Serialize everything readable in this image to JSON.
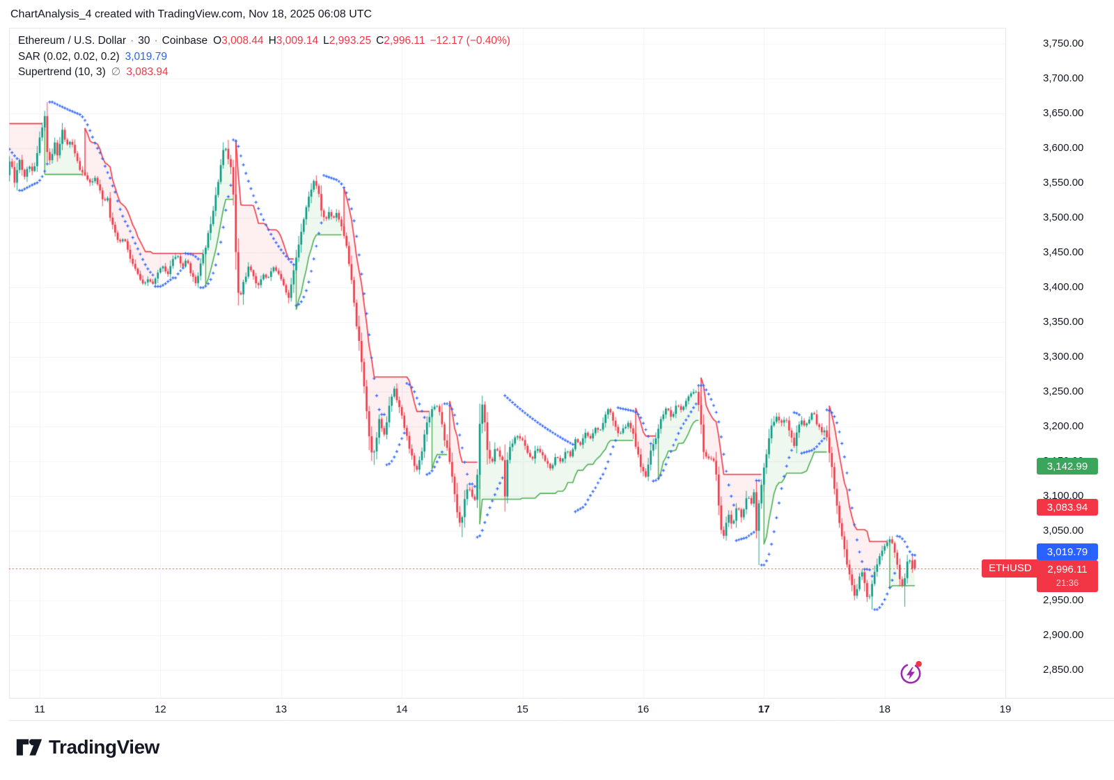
{
  "header": {
    "title": "ChartAnalysis_4 created with TradingView.com, Nov 18, 2025 06:08 UTC"
  },
  "legend": {
    "symbol_line": {
      "name": "Ethereum / U.S. Dollar",
      "sep1": "·",
      "interval": "30",
      "sep2": "·",
      "exchange": "Coinbase",
      "open_label": "O",
      "open": "3,008.44",
      "high_label": "H",
      "high": "3,009.14",
      "low_label": "L",
      "low": "2,993.25",
      "close_label": "C",
      "close": "2,996.11",
      "change": "−12.17 (−0.40%)"
    },
    "sar_line": {
      "label": "SAR (0.02, 0.02, 0.2)",
      "value": "3,019.79"
    },
    "supertrend_line": {
      "label": "Supertrend (10, 3)",
      "avg_symbol": "∅",
      "value": "3,083.94"
    }
  },
  "price_axis": {
    "tick_values": [
      3750,
      3700,
      3650,
      3600,
      3550,
      3500,
      3450,
      3400,
      3350,
      3300,
      3250,
      3200,
      3150,
      3100,
      3050,
      3000,
      2950,
      2900,
      2850
    ],
    "tick_labels": [
      "3,750.00",
      "3,700.00",
      "3,650.00",
      "3,600.00",
      "3,550.00",
      "3,500.00",
      "3,450.00",
      "3,400.00",
      "3,350.00",
      "3,300.00",
      "3,250.00",
      "3,200.00",
      "3,150.00",
      "3,100.00",
      "3,050.00",
      "3,000.00",
      "2,950.00",
      "2,900.00",
      "2,850.00"
    ],
    "badges": [
      {
        "kind": "supertrend-up-level",
        "label": "3,142.99",
        "value": 3142.99,
        "color": "#3ca55c"
      },
      {
        "kind": "supertrend-down-level",
        "label": "3,083.94",
        "value": 3083.94,
        "color": "#f23645"
      },
      {
        "kind": "sar-level",
        "label": "3,019.79",
        "value": 3019.79,
        "color": "#2962ff"
      }
    ],
    "price_badge": {
      "label": "2,996.11",
      "countdown": "21:36",
      "value": 2996.11,
      "color": "#f23645"
    },
    "symbol_badge": {
      "label": "ETHUSD",
      "color": "#f23645"
    }
  },
  "time_axis": {
    "labels": [
      {
        "text": "11",
        "day": 11,
        "bold": false
      },
      {
        "text": "12",
        "day": 12,
        "bold": false
      },
      {
        "text": "13",
        "day": 13,
        "bold": false
      },
      {
        "text": "14",
        "day": 14,
        "bold": false
      },
      {
        "text": "15",
        "day": 15,
        "bold": false
      },
      {
        "text": "16",
        "day": 16,
        "bold": false
      },
      {
        "text": "17",
        "day": 17,
        "bold": true
      },
      {
        "text": "18",
        "day": 18,
        "bold": false
      },
      {
        "text": "19",
        "day": 19,
        "bold": false
      }
    ]
  },
  "footer": {
    "brand": "TradingView"
  },
  "colors": {
    "background": "#ffffff",
    "candle_up": "#089981",
    "candle_down": "#f23645",
    "sar": "#2962ff",
    "st_up_line": "#4caf50",
    "st_down_line": "#f23645",
    "st_up_fill": "rgba(76,175,80,0.09)",
    "st_down_fill": "rgba(242,54,69,0.08)",
    "grid": "#f0f3fa",
    "border": "#e0e3eb",
    "axis_text": "#131722",
    "muted_text": "#787b86",
    "last_price_line": "#f23645",
    "accent_purple": "#9c27b0"
  },
  "chart_data": {
    "type": "candlestick",
    "title": "Ethereum / U.S. Dollar · 30 · Coinbase",
    "symbol": "ETHUSD",
    "exchange": "Coinbase",
    "interval_minutes": 30,
    "x_axis": {
      "unit": "day of month, Nov 2025",
      "start": 10.75,
      "end": 18.25,
      "ticks": [
        11,
        12,
        13,
        14,
        15,
        16,
        17,
        18,
        19
      ]
    },
    "y_axis": {
      "min": 2850,
      "max": 3750,
      "tick_step": 50,
      "grid": true
    },
    "current_candle": {
      "open": 3008.44,
      "high": 3009.14,
      "low": 2993.25,
      "close": 2996.11,
      "change": -12.17,
      "change_pct": -0.4
    },
    "last_price": 2996.11,
    "countdown": "21:36",
    "indicators": {
      "sar": {
        "start": 0.02,
        "increment": 0.02,
        "max": 0.2,
        "value": 3019.79
      },
      "supertrend": {
        "atr_length": 10,
        "factor": 3,
        "value": 3083.94,
        "direction": "down",
        "up_stop_level": 3142.99
      }
    },
    "seed": 11,
    "price_waypoints": [
      [
        10.75,
        3560
      ],
      [
        10.78,
        3588
      ],
      [
        10.81,
        3552
      ],
      [
        10.85,
        3585
      ],
      [
        10.89,
        3555
      ],
      [
        10.93,
        3578
      ],
      [
        10.97,
        3562
      ],
      [
        11.0,
        3596
      ],
      [
        11.03,
        3625
      ],
      [
        11.062,
        3648
      ],
      [
        11.085,
        3592
      ],
      [
        11.11,
        3575
      ],
      [
        11.14,
        3612
      ],
      [
        11.17,
        3590
      ],
      [
        11.205,
        3628
      ],
      [
        11.24,
        3602
      ],
      [
        11.28,
        3612
      ],
      [
        11.32,
        3586
      ],
      [
        11.36,
        3568
      ],
      [
        11.4,
        3560
      ],
      [
        11.44,
        3548
      ],
      [
        11.48,
        3558
      ],
      [
        11.52,
        3542
      ],
      [
        11.55,
        3520
      ],
      [
        11.58,
        3534
      ],
      [
        11.61,
        3496
      ],
      [
        11.64,
        3478
      ],
      [
        11.68,
        3463
      ],
      [
        11.72,
        3472
      ],
      [
        11.76,
        3446
      ],
      [
        11.8,
        3430
      ],
      [
        11.84,
        3416
      ],
      [
        11.88,
        3402
      ],
      [
        11.92,
        3412
      ],
      [
        11.96,
        3404
      ],
      [
        12.0,
        3420
      ],
      [
        12.04,
        3432
      ],
      [
        12.08,
        3418
      ],
      [
        12.12,
        3438
      ],
      [
        12.16,
        3448
      ],
      [
        12.2,
        3428
      ],
      [
        12.24,
        3440
      ],
      [
        12.28,
        3418
      ],
      [
        12.31,
        3405
      ],
      [
        12.34,
        3424
      ],
      [
        12.38,
        3448
      ],
      [
        12.42,
        3478
      ],
      [
        12.46,
        3516
      ],
      [
        12.5,
        3556
      ],
      [
        12.53,
        3586
      ],
      [
        12.555,
        3604
      ],
      [
        12.58,
        3590
      ],
      [
        12.61,
        3566
      ],
      [
        12.635,
        3512
      ],
      [
        12.655,
        3396
      ],
      [
        12.68,
        3384
      ],
      [
        12.71,
        3408
      ],
      [
        12.75,
        3428
      ],
      [
        12.79,
        3418
      ],
      [
        12.83,
        3400
      ],
      [
        12.87,
        3420
      ],
      [
        12.91,
        3412
      ],
      [
        12.95,
        3428
      ],
      [
        12.99,
        3424
      ],
      [
        13.03,
        3410
      ],
      [
        13.06,
        3396
      ],
      [
        13.085,
        3384
      ],
      [
        13.11,
        3408
      ],
      [
        13.15,
        3448
      ],
      [
        13.19,
        3486
      ],
      [
        13.23,
        3516
      ],
      [
        13.27,
        3542
      ],
      [
        13.3,
        3556
      ],
      [
        13.33,
        3534
      ],
      [
        13.36,
        3506
      ],
      [
        13.39,
        3496
      ],
      [
        13.42,
        3510
      ],
      [
        13.45,
        3498
      ],
      [
        13.48,
        3508
      ],
      [
        13.51,
        3494
      ],
      [
        13.54,
        3478
      ],
      [
        13.57,
        3448
      ],
      [
        13.6,
        3414
      ],
      [
        13.63,
        3368
      ],
      [
        13.66,
        3328
      ],
      [
        13.69,
        3288
      ],
      [
        13.72,
        3242
      ],
      [
        13.75,
        3188
      ],
      [
        13.78,
        3152
      ],
      [
        13.81,
        3186
      ],
      [
        13.84,
        3214
      ],
      [
        13.87,
        3180
      ],
      [
        13.9,
        3212
      ],
      [
        13.93,
        3240
      ],
      [
        13.958,
        3255
      ],
      [
        13.99,
        3234
      ],
      [
        14.02,
        3214
      ],
      [
        14.06,
        3186
      ],
      [
        14.1,
        3160
      ],
      [
        14.135,
        3132
      ],
      [
        14.17,
        3152
      ],
      [
        14.2,
        3180
      ],
      [
        14.23,
        3206
      ],
      [
        14.26,
        3222
      ],
      [
        14.3,
        3232
      ],
      [
        14.33,
        3226
      ],
      [
        14.36,
        3196
      ],
      [
        14.39,
        3170
      ],
      [
        14.42,
        3148
      ],
      [
        14.45,
        3114
      ],
      [
        14.48,
        3076
      ],
      [
        14.51,
        3058
      ],
      [
        14.54,
        3094
      ],
      [
        14.57,
        3118
      ],
      [
        14.6,
        3098
      ],
      [
        14.63,
        3092
      ],
      [
        14.66,
        3172
      ],
      [
        14.675,
        3240
      ],
      [
        14.7,
        3222
      ],
      [
        14.73,
        3168
      ],
      [
        14.76,
        3142
      ],
      [
        14.8,
        3172
      ],
      [
        14.83,
        3158
      ],
      [
        14.86,
        3148
      ],
      [
        14.875,
        3098
      ],
      [
        14.9,
        3158
      ],
      [
        14.94,
        3178
      ],
      [
        14.98,
        3188
      ],
      [
        15.02,
        3180
      ],
      [
        15.06,
        3164
      ],
      [
        15.1,
        3152
      ],
      [
        15.14,
        3170
      ],
      [
        15.18,
        3160
      ],
      [
        15.22,
        3148
      ],
      [
        15.26,
        3138
      ],
      [
        15.3,
        3158
      ],
      [
        15.34,
        3148
      ],
      [
        15.38,
        3168
      ],
      [
        15.42,
        3158
      ],
      [
        15.46,
        3180
      ],
      [
        15.5,
        3172
      ],
      [
        15.54,
        3190
      ],
      [
        15.58,
        3182
      ],
      [
        15.62,
        3200
      ],
      [
        15.66,
        3192
      ],
      [
        15.7,
        3214
      ],
      [
        15.74,
        3227
      ],
      [
        15.78,
        3205
      ],
      [
        15.82,
        3186
      ],
      [
        15.86,
        3198
      ],
      [
        15.9,
        3205
      ],
      [
        15.94,
        3186
      ],
      [
        15.98,
        3160
      ],
      [
        16.01,
        3136
      ],
      [
        16.04,
        3128
      ],
      [
        16.07,
        3154
      ],
      [
        16.1,
        3172
      ],
      [
        16.14,
        3194
      ],
      [
        16.18,
        3216
      ],
      [
        16.22,
        3228
      ],
      [
        16.26,
        3212
      ],
      [
        16.3,
        3232
      ],
      [
        16.34,
        3222
      ],
      [
        16.38,
        3238
      ],
      [
        16.42,
        3248
      ],
      [
        16.455,
        3254
      ],
      [
        16.49,
        3216
      ],
      [
        16.52,
        3166
      ],
      [
        16.56,
        3152
      ],
      [
        16.6,
        3156
      ],
      [
        16.63,
        3122
      ],
      [
        16.66,
        3058
      ],
      [
        16.69,
        3044
      ],
      [
        16.72,
        3076
      ],
      [
        16.76,
        3056
      ],
      [
        16.8,
        3088
      ],
      [
        16.84,
        3066
      ],
      [
        16.88,
        3102
      ],
      [
        16.92,
        3088
      ],
      [
        16.945,
        3118
      ],
      [
        16.96,
        3046
      ],
      [
        16.985,
        3098
      ],
      [
        17.01,
        3126
      ],
      [
        17.04,
        3158
      ],
      [
        17.07,
        3190
      ],
      [
        17.1,
        3208
      ],
      [
        17.13,
        3218
      ],
      [
        17.16,
        3202
      ],
      [
        17.2,
        3215
      ],
      [
        17.24,
        3188
      ],
      [
        17.27,
        3172
      ],
      [
        17.3,
        3196
      ],
      [
        17.33,
        3210
      ],
      [
        17.36,
        3200
      ],
      [
        17.4,
        3212
      ],
      [
        17.43,
        3222
      ],
      [
        17.46,
        3205
      ],
      [
        17.5,
        3190
      ],
      [
        17.53,
        3198
      ],
      [
        17.56,
        3168
      ],
      [
        17.59,
        3132
      ],
      [
        17.62,
        3092
      ],
      [
        17.65,
        3058
      ],
      [
        17.68,
        3032
      ],
      [
        17.71,
        3002
      ],
      [
        17.74,
        2978
      ],
      [
        17.77,
        2958
      ],
      [
        17.8,
        2972
      ],
      [
        17.83,
        2995
      ],
      [
        17.86,
        2968
      ],
      [
        17.89,
        2948
      ],
      [
        17.92,
        2982
      ],
      [
        17.95,
        3002
      ],
      [
        17.98,
        3012
      ],
      [
        18.01,
        3026
      ],
      [
        18.04,
        3032
      ],
      [
        18.07,
        3038
      ],
      [
        18.1,
        3024
      ],
      [
        18.13,
        3000
      ],
      [
        18.16,
        2964
      ],
      [
        18.19,
        2988
      ],
      [
        18.22,
        3012
      ],
      [
        18.25,
        2996.11
      ]
    ],
    "wick_highs": [
      [
        11.062,
        3657
      ],
      [
        12.555,
        3612
      ],
      [
        13.3,
        3561
      ],
      [
        13.958,
        3262
      ],
      [
        16.455,
        3259
      ]
    ],
    "wick_lows": [
      [
        12.68,
        3375
      ],
      [
        13.78,
        3145
      ],
      [
        14.51,
        3041
      ],
      [
        16.96,
        3001
      ],
      [
        17.89,
        2937
      ],
      [
        18.16,
        2941
      ]
    ]
  }
}
